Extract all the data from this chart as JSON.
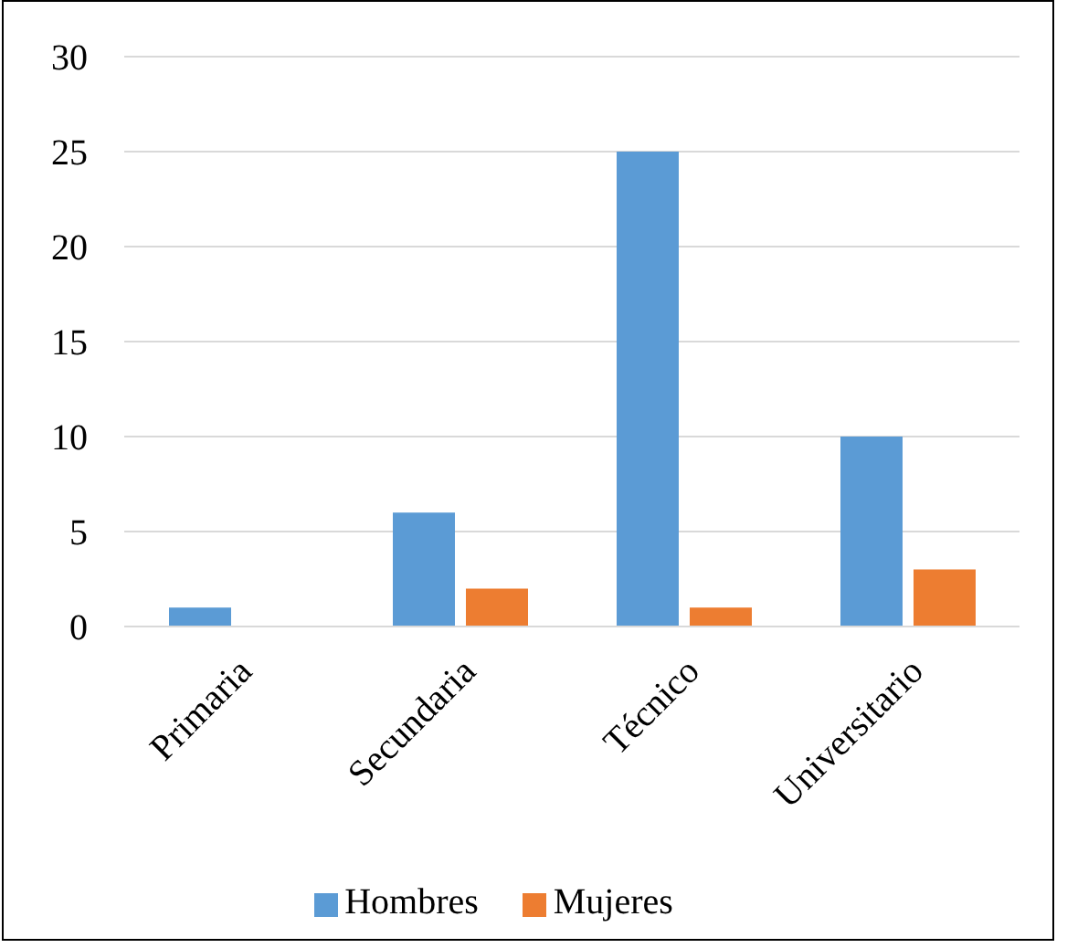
{
  "chart_data": {
    "type": "bar",
    "categories": [
      "Primaria",
      "Secundaria",
      "Técnico",
      "Universitario"
    ],
    "series": [
      {
        "name": "Hombres",
        "color": "#5b9bd5",
        "values": [
          1,
          6,
          25,
          10
        ]
      },
      {
        "name": "Mujeres",
        "color": "#ed7d31",
        "values": [
          0,
          2,
          1,
          3
        ]
      }
    ],
    "ylim": [
      0,
      30
    ],
    "yticks": [
      0,
      5,
      10,
      15,
      20,
      25,
      30
    ],
    "grid": "y",
    "legend": "bottom"
  }
}
